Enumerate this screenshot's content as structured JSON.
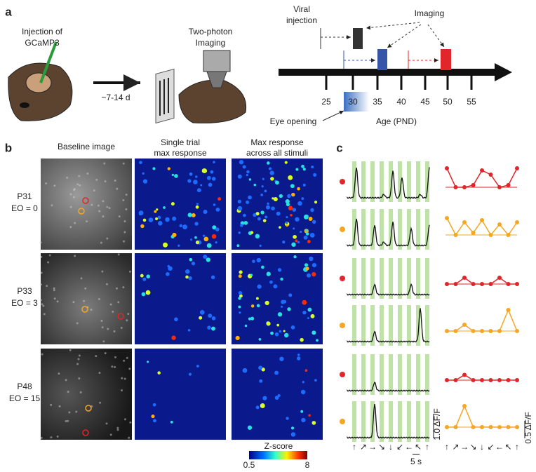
{
  "panel_a": {
    "label": "a",
    "injection": [
      "Injection of",
      "GCaMP3"
    ],
    "interval": "~7-14 d",
    "imaging_setup": [
      "Two-photon",
      "Imaging"
    ],
    "viral_injection": [
      "Viral",
      "injection"
    ],
    "imaging": "Imaging",
    "age_ticks": [
      25,
      30,
      35,
      40,
      45,
      50,
      55
    ],
    "eye_opening": "Eye opening",
    "age_axis": "Age (PND)"
  },
  "panel_b": {
    "label": "b",
    "columns": [
      [
        "Baseline image"
      ],
      [
        "Single trial",
        "max response"
      ],
      [
        "Max response",
        "across all stimuli"
      ]
    ],
    "rows": [
      {
        "age": "P31",
        "eo": "EO = 0",
        "color": "#222222"
      },
      {
        "age": "P33",
        "eo": "EO = 3",
        "color": "#3b55a8"
      },
      {
        "age": "P48",
        "eo": "EO = 15",
        "color": "#e0262a"
      }
    ],
    "colorbar": {
      "title": "Z-score",
      "min": 0.5,
      "max": 8
    }
  },
  "panel_c": {
    "label": "c",
    "left_scale": "1.0 ΔF/F",
    "time_scale": "5 s",
    "right_scale": "0.5 ΔF/F",
    "directions": [
      "↑",
      "↗",
      "→",
      "↘",
      "↓",
      "↙",
      "←",
      "↖",
      "↑"
    ]
  }
}
